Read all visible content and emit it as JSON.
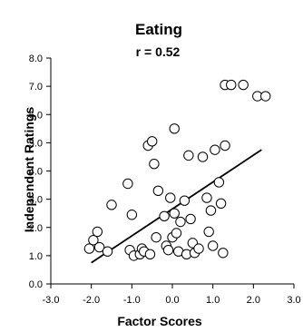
{
  "chart_data": {
    "type": "scatter",
    "title": "Eating",
    "subtitle": "r = 0.52",
    "xlabel": "Factor Scores",
    "ylabel": "Independent Ratings",
    "xlim": [
      -3.0,
      3.0
    ],
    "ylim": [
      0.0,
      8.0
    ],
    "x_ticks": [
      "-3.0",
      "-2.0",
      "-1.0",
      "0.0",
      "1.0",
      "2.0",
      "3.0"
    ],
    "y_ticks": [
      "0.0",
      "1.0",
      "2.0",
      "3.0",
      "4.0",
      "5.0",
      "6.0",
      "7.0",
      "8.0"
    ],
    "grid": false,
    "marker": "open-circle",
    "points": [
      {
        "x": -2.05,
        "y": 1.25
      },
      {
        "x": -1.95,
        "y": 1.55
      },
      {
        "x": -1.85,
        "y": 1.85
      },
      {
        "x": -1.8,
        "y": 1.3
      },
      {
        "x": -1.6,
        "y": 1.15
      },
      {
        "x": -1.5,
        "y": 2.8
      },
      {
        "x": -1.1,
        "y": 3.55
      },
      {
        "x": -1.05,
        "y": 1.2
      },
      {
        "x": -1.0,
        "y": 2.45
      },
      {
        "x": -0.95,
        "y": 1.0
      },
      {
        "x": -0.8,
        "y": 1.05
      },
      {
        "x": -0.75,
        "y": 1.25
      },
      {
        "x": -0.7,
        "y": 1.15
      },
      {
        "x": -0.6,
        "y": 4.9
      },
      {
        "x": -0.55,
        "y": 1.05
      },
      {
        "x": -0.5,
        "y": 5.05
      },
      {
        "x": -0.45,
        "y": 4.25
      },
      {
        "x": -0.4,
        "y": 1.65
      },
      {
        "x": -0.35,
        "y": 3.3
      },
      {
        "x": -0.2,
        "y": 2.4
      },
      {
        "x": -0.15,
        "y": 1.35
      },
      {
        "x": -0.1,
        "y": 1.2
      },
      {
        "x": -0.05,
        "y": 3.05
      },
      {
        "x": 0.0,
        "y": 1.65
      },
      {
        "x": 0.05,
        "y": 5.5
      },
      {
        "x": 0.05,
        "y": 2.5
      },
      {
        "x": 0.1,
        "y": 1.8
      },
      {
        "x": 0.15,
        "y": 1.15
      },
      {
        "x": 0.2,
        "y": 2.2
      },
      {
        "x": 0.3,
        "y": 2.95
      },
      {
        "x": 0.35,
        "y": 1.05
      },
      {
        "x": 0.4,
        "y": 4.55
      },
      {
        "x": 0.45,
        "y": 2.3
      },
      {
        "x": 0.5,
        "y": 1.45
      },
      {
        "x": 0.55,
        "y": 1.1
      },
      {
        "x": 0.65,
        "y": 1.25
      },
      {
        "x": 0.75,
        "y": 4.5
      },
      {
        "x": 0.85,
        "y": 3.05
      },
      {
        "x": 0.9,
        "y": 1.85
      },
      {
        "x": 0.95,
        "y": 2.6
      },
      {
        "x": 1.0,
        "y": 1.35
      },
      {
        "x": 1.05,
        "y": 4.75
      },
      {
        "x": 1.15,
        "y": 3.6
      },
      {
        "x": 1.2,
        "y": 2.85
      },
      {
        "x": 1.25,
        "y": 1.1
      },
      {
        "x": 1.3,
        "y": 4.9
      },
      {
        "x": 1.3,
        "y": 7.05
      },
      {
        "x": 1.45,
        "y": 7.05
      },
      {
        "x": 1.75,
        "y": 7.05
      },
      {
        "x": 2.1,
        "y": 6.65
      },
      {
        "x": 2.3,
        "y": 6.65
      }
    ],
    "regression_line": {
      "x": [
        -2.0,
        2.2
      ],
      "y": [
        0.75,
        4.75
      ]
    }
  }
}
